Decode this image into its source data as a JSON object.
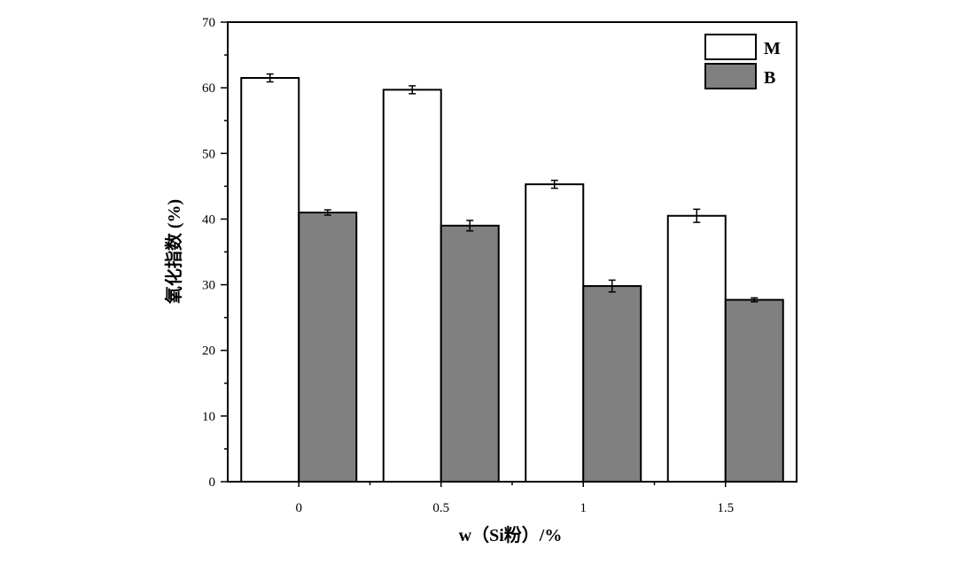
{
  "chart_data": {
    "type": "bar",
    "title": "",
    "xlabel": "w（Si粉）/%",
    "ylabel": "氧化指数 (%)",
    "categories": [
      "0",
      "0.5",
      "1",
      "1.5"
    ],
    "ylim": [
      0,
      70
    ],
    "yticks": [
      0,
      10,
      20,
      30,
      40,
      50,
      60,
      70
    ],
    "series": [
      {
        "name": "M",
        "color": "#ffffff",
        "values": [
          61.5,
          59.7,
          45.3,
          40.5
        ],
        "errors": [
          0.6,
          0.6,
          0.6,
          1.0
        ]
      },
      {
        "name": "B",
        "color": "#808080",
        "values": [
          41.0,
          39.0,
          29.8,
          27.7
        ],
        "errors": [
          0.4,
          0.8,
          0.9,
          0.3
        ]
      }
    ],
    "legend": "top-right",
    "grid": false
  }
}
